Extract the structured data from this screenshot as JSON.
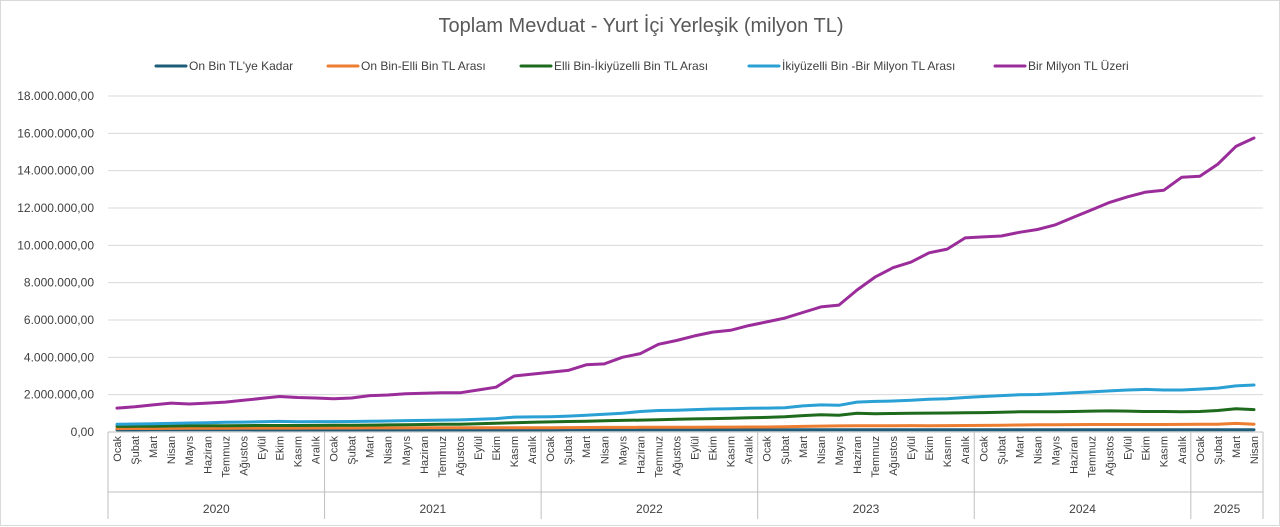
{
  "chart_data": {
    "type": "line",
    "title": "Toplam Mevduat - Yurt İçi Yerleşik (milyon TL)",
    "xlabel": "",
    "ylabel": "",
    "ylim": [
      0,
      18000000
    ],
    "yticks": [
      0,
      2000000,
      4000000,
      6000000,
      8000000,
      10000000,
      12000000,
      14000000,
      16000000,
      18000000
    ],
    "ytick_labels": [
      "0,00",
      "2.000.000,00",
      "4.000.000,00",
      "6.000.000,00",
      "8.000.000,00",
      "10.000.000,00",
      "12.000.000,00",
      "14.000.000,00",
      "16.000.000,00",
      "18.000.000,00"
    ],
    "grid": true,
    "legend_position": "top",
    "month_labels": [
      "Ocak",
      "Şubat",
      "Mart",
      "Nisan",
      "Mayıs",
      "Haziran",
      "Temmuz",
      "Ağustos",
      "Eylül",
      "Ekim",
      "Kasım",
      "Aralık"
    ],
    "years": [
      {
        "label": "2020",
        "months": 12
      },
      {
        "label": "2021",
        "months": 12
      },
      {
        "label": "2022",
        "months": 12
      },
      {
        "label": "2023",
        "months": 12
      },
      {
        "label": "2024",
        "months": 12
      },
      {
        "label": "2025",
        "months": 4
      }
    ],
    "series": [
      {
        "name": "On Bin TL'ye Kadar",
        "color": "#1f5c7a",
        "values": [
          115000,
          115000,
          118000,
          120000,
          120000,
          120000,
          120000,
          118000,
          115000,
          110000,
          110000,
          112000,
          112000,
          112000,
          115000,
          115000,
          115000,
          115000,
          115000,
          115000,
          112000,
          112000,
          110000,
          112000,
          115000,
          118000,
          118000,
          125000,
          120000,
          118000,
          118000,
          118000,
          118000,
          118000,
          118000,
          118000,
          118000,
          118000,
          118000,
          118000,
          118000,
          118000,
          118000,
          118000,
          118000,
          118000,
          118000,
          118000,
          118000,
          118000,
          120000,
          120000,
          120000,
          120000,
          120000,
          120000,
          120000,
          118000,
          118000,
          118000,
          118000,
          118000,
          118000,
          118000
        ]
      },
      {
        "name": "On Bin-Elli Bin TL Arası",
        "color": "#ed7d31",
        "values": [
          180000,
          185000,
          190000,
          195000,
          200000,
          200000,
          205000,
          210000,
          210000,
          210000,
          210000,
          215000,
          215000,
          215000,
          220000,
          220000,
          220000,
          225000,
          225000,
          225000,
          225000,
          225000,
          225000,
          225000,
          230000,
          235000,
          240000,
          245000,
          245000,
          250000,
          250000,
          255000,
          255000,
          260000,
          265000,
          270000,
          270000,
          285000,
          300000,
          315000,
          325000,
          340000,
          330000,
          335000,
          345000,
          340000,
          345000,
          350000,
          355000,
          365000,
          375000,
          385000,
          390000,
          395000,
          400000,
          400000,
          400000,
          400000,
          400000,
          405000,
          410000,
          420000,
          460000,
          420000
        ]
      },
      {
        "name": "Elli Bin-İkiyüzelli Bin TL Arası",
        "color": "#1e6b1e",
        "values": [
          300000,
          305000,
          310000,
          320000,
          330000,
          335000,
          340000,
          345000,
          350000,
          350000,
          350000,
          355000,
          360000,
          365000,
          370000,
          380000,
          390000,
          400000,
          410000,
          420000,
          440000,
          470000,
          500000,
          520000,
          540000,
          560000,
          580000,
          600000,
          620000,
          640000,
          660000,
          680000,
          700000,
          720000,
          740000,
          760000,
          780000,
          820000,
          880000,
          920000,
          900000,
          1000000,
          980000,
          990000,
          1000000,
          1010000,
          1020000,
          1030000,
          1040000,
          1060000,
          1080000,
          1090000,
          1080000,
          1100000,
          1120000,
          1130000,
          1120000,
          1100000,
          1100000,
          1080000,
          1100000,
          1150000,
          1250000,
          1200000
        ]
      },
      {
        "name": "İkiyüzelli Bin -Bir Milyon  TL Arası",
        "color": "#2aa0d4",
        "values": [
          420000,
          430000,
          440000,
          460000,
          480000,
          500000,
          520000,
          530000,
          550000,
          570000,
          550000,
          555000,
          555000,
          560000,
          580000,
          590000,
          610000,
          620000,
          640000,
          650000,
          680000,
          720000,
          800000,
          810000,
          820000,
          850000,
          900000,
          950000,
          1000000,
          1100000,
          1150000,
          1170000,
          1200000,
          1230000,
          1250000,
          1270000,
          1280000,
          1300000,
          1400000,
          1450000,
          1430000,
          1600000,
          1640000,
          1660000,
          1700000,
          1750000,
          1780000,
          1850000,
          1900000,
          1950000,
          2000000,
          2010000,
          2050000,
          2100000,
          2150000,
          2200000,
          2250000,
          2280000,
          2250000,
          2250000,
          2300000,
          2350000,
          2470000,
          2520000
        ]
      },
      {
        "name": "Bir Milyon TL Üzeri",
        "color": "#9b2d9b",
        "values": [
          1280000,
          1350000,
          1450000,
          1550000,
          1500000,
          1550000,
          1600000,
          1700000,
          1800000,
          1900000,
          1850000,
          1820000,
          1780000,
          1820000,
          1950000,
          1980000,
          2050000,
          2080000,
          2100000,
          2100000,
          2250000,
          2400000,
          3000000,
          3100000,
          3200000,
          3300000,
          3600000,
          3650000,
          4000000,
          4200000,
          4700000,
          4900000,
          5150000,
          5350000,
          5450000,
          5700000,
          5900000,
          6100000,
          6400000,
          6700000,
          6800000,
          7600000,
          8300000,
          8800000,
          9100000,
          9600000,
          9800000,
          10400000,
          10450000,
          10500000,
          10700000,
          10850000,
          11100000,
          11500000,
          11900000,
          12300000,
          12600000,
          12850000,
          12950000,
          13650000,
          13700000,
          14350000,
          15300000,
          15750000
        ]
      }
    ]
  }
}
